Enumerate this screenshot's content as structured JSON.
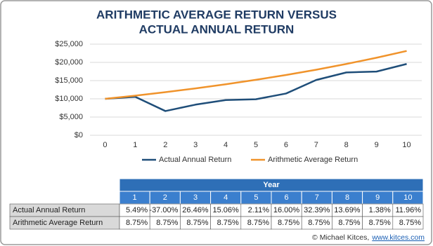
{
  "chart_data": {
    "type": "line",
    "title": [
      "ARITHMETIC AVERAGE RETURN VERSUS",
      "ACTUAL ANNUAL RETURN"
    ],
    "x": [
      0,
      1,
      2,
      3,
      4,
      5,
      6,
      7,
      8,
      9,
      10
    ],
    "series": [
      {
        "name": "Actual Annual Return",
        "color": "#1f4e79",
        "values": [
          10000,
          10549,
          6646,
          8405,
          9671,
          9875,
          11455,
          15166,
          17239,
          17477,
          19567
        ]
      },
      {
        "name": "Arithmetic Average Return",
        "color": "#f0932b",
        "values": [
          10000,
          10875,
          11827,
          12861,
          13987,
          15211,
          16542,
          17989,
          19563,
          21275,
          23136
        ]
      }
    ],
    "xlim": [
      -0.5,
      10.5
    ],
    "xticks": [
      0,
      1,
      2,
      3,
      4,
      5,
      6,
      7,
      8,
      9,
      10
    ],
    "ylim": [
      0,
      25000
    ],
    "yticks": [
      {
        "value": 0,
        "label": "$0"
      },
      {
        "value": 5000,
        "label": "$5,000"
      },
      {
        "value": 10000,
        "label": "$10,000"
      },
      {
        "value": 15000,
        "label": "$15,000"
      },
      {
        "value": 20000,
        "label": "$20,000"
      },
      {
        "value": 25000,
        "label": "$25,000"
      }
    ],
    "grid": true,
    "legend": "bottom"
  },
  "table": {
    "header": "Year",
    "columns": [
      "1",
      "2",
      "3",
      "4",
      "5",
      "6",
      "7",
      "8",
      "9",
      "10"
    ],
    "rows": [
      [
        "Actual Annual Return",
        "5.49%",
        "-37.00%",
        "26.46%",
        "15.06%",
        "2.11%",
        "16.00%",
        "32.39%",
        "13.69%",
        "1.38%",
        "11.96%"
      ],
      [
        "Arithmetic Average Return",
        "8.75%",
        "8.75%",
        "8.75%",
        "8.75%",
        "8.75%",
        "8.75%",
        "8.75%",
        "8.75%",
        "8.75%",
        "8.75%"
      ]
    ]
  },
  "footer": {
    "text": "© Michael Kitces,",
    "link": "www.kitces.com"
  }
}
